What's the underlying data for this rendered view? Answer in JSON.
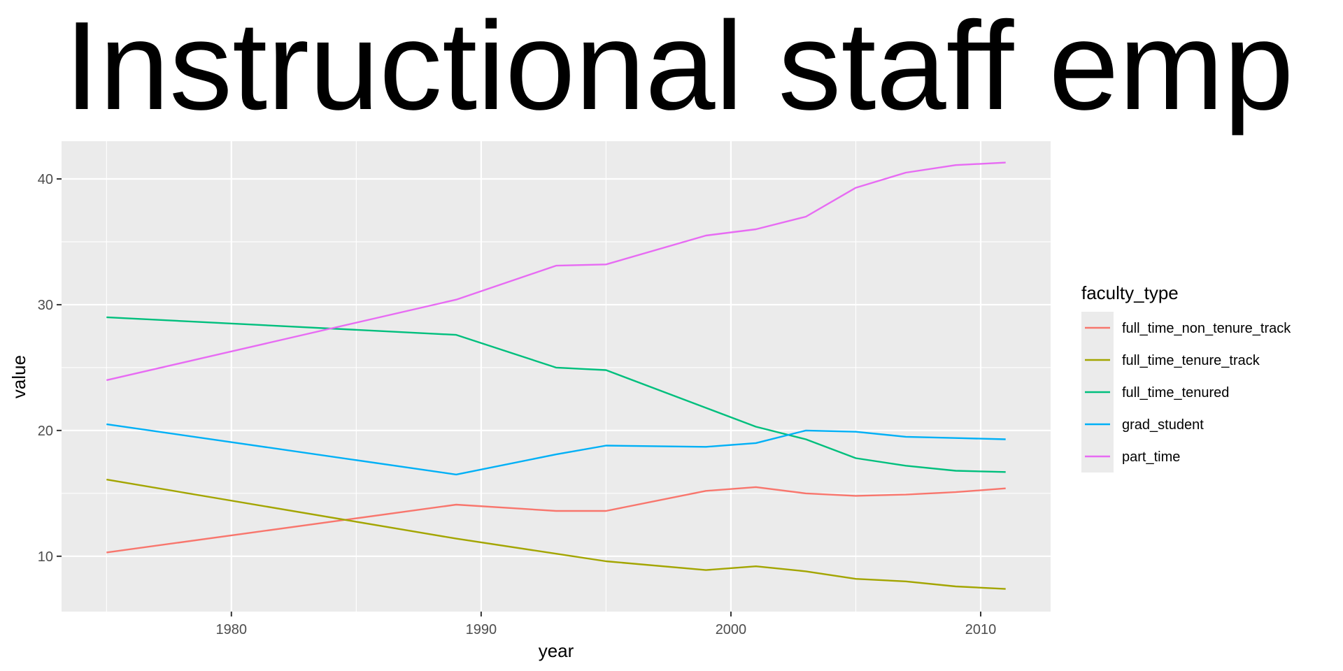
{
  "chart_data": {
    "type": "line",
    "title": "Instructional staff emp",
    "xlabel": "year",
    "ylabel": "value",
    "xlim": [
      1973.2,
      2012.8
    ],
    "ylim": [
      5.6,
      43
    ],
    "x_ticks": [
      1980,
      1990,
      2000,
      2010
    ],
    "y_ticks": [
      10,
      20,
      30,
      40
    ],
    "x_minor_ticks": [
      1975,
      1985,
      1995,
      2005
    ],
    "y_minor_ticks": [
      15,
      25,
      35
    ],
    "grid": true,
    "legend_position": "right",
    "legend_title": "faculty_type",
    "x": [
      1975,
      1989,
      1993,
      1995,
      1999,
      2001,
      2003,
      2005,
      2007,
      2009,
      2011
    ],
    "series": [
      {
        "name": "full_time_non_tenure_track",
        "color": "#F8766D",
        "values": [
          10.3,
          14.1,
          13.6,
          13.6,
          15.2,
          15.5,
          15.0,
          14.8,
          14.9,
          15.1,
          15.4
        ]
      },
      {
        "name": "full_time_tenure_track",
        "color": "#A3A500",
        "values": [
          16.1,
          11.4,
          10.2,
          9.6,
          8.9,
          9.2,
          8.8,
          8.2,
          8.0,
          7.6,
          7.4
        ]
      },
      {
        "name": "full_time_tenured",
        "color": "#00BF7D",
        "values": [
          29.0,
          27.6,
          25.0,
          24.8,
          21.8,
          20.3,
          19.3,
          17.8,
          17.2,
          16.8,
          16.7
        ]
      },
      {
        "name": "grad_student",
        "color": "#00B0F6",
        "values": [
          20.5,
          16.5,
          18.1,
          18.8,
          18.7,
          19.0,
          20.0,
          19.9,
          19.5,
          19.4,
          19.3
        ]
      },
      {
        "name": "part_time",
        "color": "#E76BF3",
        "values": [
          24.0,
          30.4,
          33.1,
          33.2,
          35.5,
          36.0,
          37.0,
          39.3,
          40.5,
          41.1,
          41.3
        ]
      }
    ]
  }
}
